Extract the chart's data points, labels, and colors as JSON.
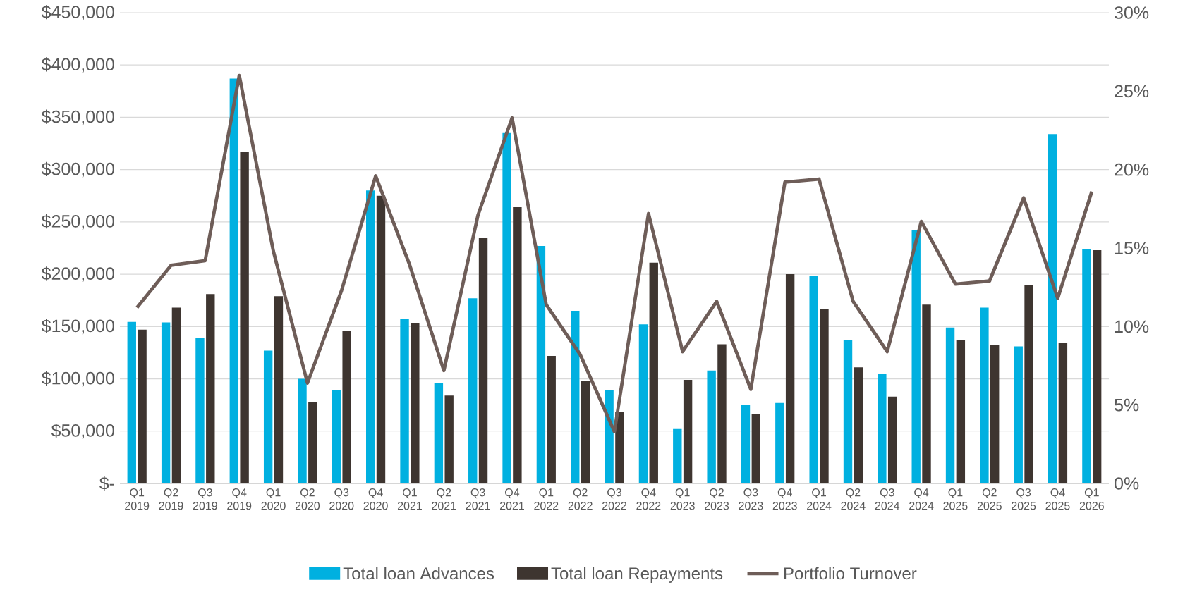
{
  "chart_data": {
    "type": "bar",
    "categories": [
      "Q1 2019",
      "Q2 2019",
      "Q3 2019",
      "Q4 2019",
      "Q1 2020",
      "Q2 2020",
      "Q3 2020",
      "Q4 2020",
      "Q1 2021",
      "Q2 2021",
      "Q3 2021",
      "Q4 2021",
      "Q1 2022",
      "Q2 2022",
      "Q3 2022",
      "Q4 2022",
      "Q1 2023",
      "Q2 2023",
      "Q3 2023",
      "Q4 2023",
      "Q1 2024",
      "Q2 2024",
      "Q3 2024",
      "Q4 2024",
      "Q1 2025",
      "Q2 2025",
      "Q3 2025",
      "Q4 2025",
      "Q1 2026"
    ],
    "series": [
      {
        "name": "Total loan Advances",
        "color": "#00b0e0",
        "values": [
          154500,
          154000,
          139500,
          387000,
          127000,
          100000,
          89000,
          280000,
          157000,
          96000,
          177000,
          335000,
          227000,
          165000,
          89000,
          152000,
          52000,
          108000,
          75000,
          77000,
          198000,
          137000,
          105000,
          242000,
          149000,
          168000,
          131000,
          334000,
          224000
        ]
      },
      {
        "name": "Total loan Repayments",
        "color": "#3e3530",
        "values": [
          147000,
          168000,
          181000,
          317000,
          179000,
          78000,
          146000,
          275000,
          153000,
          84000,
          235000,
          264000,
          122000,
          98000,
          68000,
          211000,
          99000,
          133000,
          66000,
          200000,
          167000,
          111000,
          83000,
          171000,
          137000,
          132000,
          190000,
          134000,
          223000
        ]
      },
      {
        "name": "Portfolio Turnover",
        "color": "#6e5d58",
        "type": "line",
        "axis": "y2",
        "values": [
          11.2,
          13.9,
          14.2,
          26.0,
          14.8,
          6.4,
          12.3,
          19.6,
          13.9,
          7.2,
          17.1,
          23.3,
          11.4,
          8.2,
          3.3,
          17.2,
          8.4,
          11.6,
          6.0,
          19.2,
          19.4,
          11.6,
          8.4,
          16.7,
          12.7,
          12.9,
          18.2,
          11.8,
          18.6
        ]
      }
    ],
    "ylim": [
      0,
      450000
    ],
    "yticks": [
      {
        "value": 0,
        "label": "$-"
      },
      {
        "value": 50000,
        "label": "$50,000"
      },
      {
        "value": 100000,
        "label": "$100,000"
      },
      {
        "value": 150000,
        "label": "$150,000"
      },
      {
        "value": 200000,
        "label": "$200,000"
      },
      {
        "value": 250000,
        "label": "$250,000"
      },
      {
        "value": 300000,
        "label": "$300,000"
      },
      {
        "value": 350000,
        "label": "$350,000"
      },
      {
        "value": 400000,
        "label": "$400,000"
      },
      {
        "value": 450000,
        "label": "$450,000"
      }
    ],
    "y2lim": [
      0,
      30
    ],
    "y2ticks": [
      {
        "value": 0,
        "label": "0%"
      },
      {
        "value": 5,
        "label": "5%"
      },
      {
        "value": 10,
        "label": "10%"
      },
      {
        "value": 15,
        "label": "15%"
      },
      {
        "value": 20,
        "label": "20%"
      },
      {
        "value": 25,
        "label": "25%"
      },
      {
        "value": 30,
        "label": "30%"
      }
    ],
    "grid": "y",
    "legend": "bottom"
  }
}
